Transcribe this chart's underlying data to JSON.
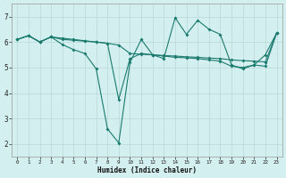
{
  "xlabel": "Humidex (Indice chaleur)",
  "background_color": "#d4efef",
  "grid_color": "#b8dada",
  "line_color": "#1a7a6e",
  "xlim": [
    -0.5,
    23.5
  ],
  "ylim": [
    1.5,
    7.5
  ],
  "xticks": [
    0,
    1,
    2,
    3,
    4,
    5,
    6,
    7,
    8,
    9,
    10,
    11,
    12,
    13,
    14,
    15,
    16,
    17,
    18,
    19,
    20,
    21,
    22,
    23
  ],
  "yticks": [
    2,
    3,
    4,
    5,
    6,
    7
  ],
  "line1_x": [
    0,
    1,
    2,
    3,
    4,
    5,
    6,
    7,
    8,
    9,
    10,
    11,
    12,
    13,
    14,
    15,
    16,
    17,
    18,
    19,
    20,
    21,
    22,
    23
  ],
  "line1_y": [
    6.1,
    6.25,
    6.0,
    6.2,
    6.15,
    6.1,
    6.05,
    6.0,
    5.95,
    3.75,
    5.35,
    5.55,
    5.5,
    5.45,
    5.4,
    5.38,
    5.35,
    5.3,
    5.25,
    5.05,
    5.0,
    5.1,
    5.05,
    6.35
  ],
  "line2_x": [
    0,
    1,
    2,
    3,
    4,
    5,
    6,
    7,
    8,
    9,
    10,
    11,
    12,
    13,
    14,
    15,
    16,
    17,
    18,
    19,
    20,
    21,
    22,
    23
  ],
  "line2_y": [
    6.1,
    6.25,
    6.0,
    6.2,
    5.9,
    5.7,
    5.55,
    4.95,
    2.6,
    2.05,
    5.2,
    6.1,
    5.5,
    5.35,
    6.95,
    6.3,
    6.85,
    6.5,
    6.3,
    5.1,
    4.95,
    5.1,
    5.5,
    6.35
  ],
  "line3_x": [
    0,
    1,
    2,
    3,
    4,
    5,
    6,
    7,
    8,
    9,
    10,
    11,
    12,
    13,
    14,
    15,
    16,
    17,
    18,
    19,
    20,
    21,
    22,
    23
  ],
  "line3_y": [
    6.1,
    6.25,
    6.0,
    6.2,
    6.1,
    6.07,
    6.03,
    6.0,
    5.95,
    5.88,
    5.55,
    5.52,
    5.5,
    5.47,
    5.45,
    5.42,
    5.4,
    5.37,
    5.35,
    5.3,
    5.27,
    5.25,
    5.22,
    6.35
  ]
}
